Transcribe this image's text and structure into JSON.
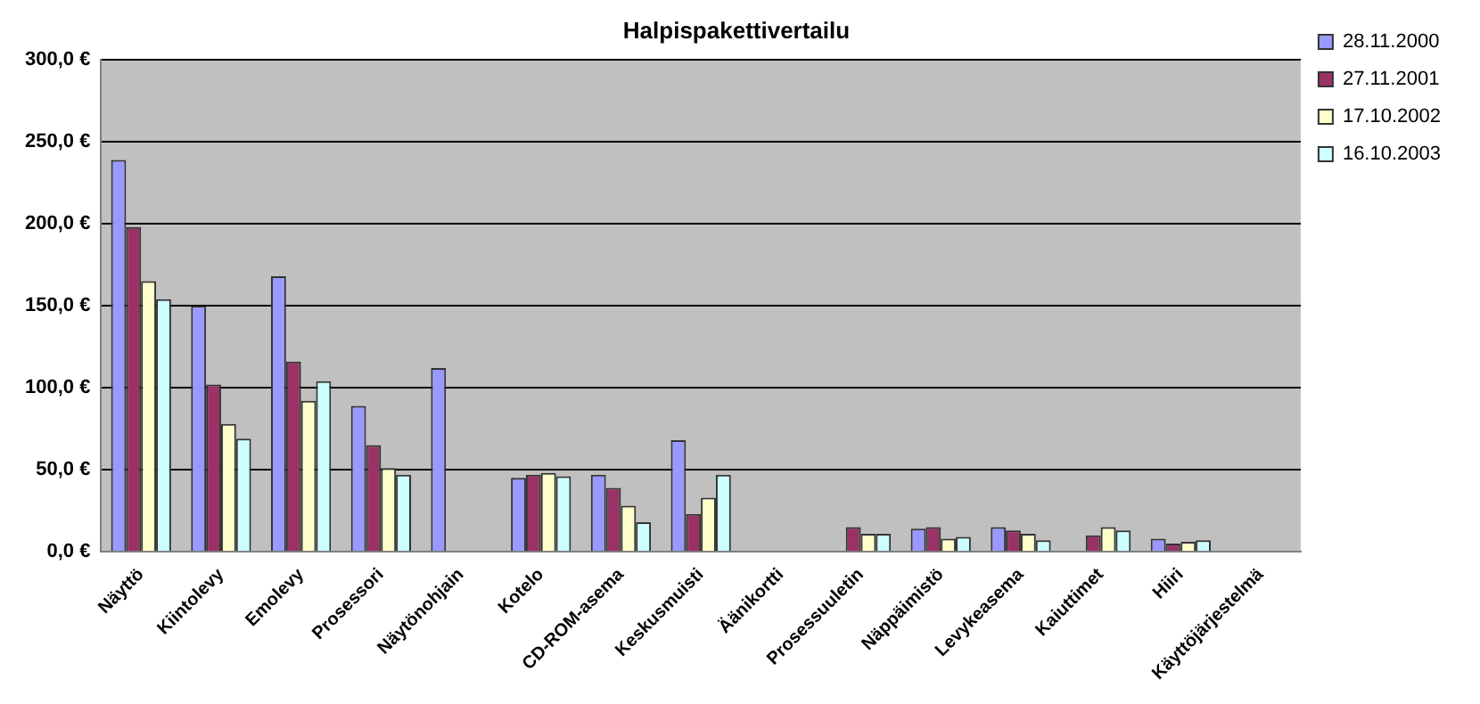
{
  "chart_data": {
    "type": "bar",
    "title": "Halpispakettivertailu",
    "categories": [
      "Näyttö",
      "Kiintolevy",
      "Emolevy",
      "Prosessori",
      "Näytönohjain",
      "Kotelo",
      "CD-ROM-asema",
      "Keskusmuisti",
      "Äänikortti",
      "Prosessuuletin",
      "Näppäimistö",
      "Levykeasema",
      "Kaiuttimet",
      "Hiiri",
      "Käyttöjärjestelmä"
    ],
    "series": [
      {
        "name": "28.11.2000",
        "color": "#9999ff",
        "values": [
          239,
          150,
          168,
          89,
          112,
          45,
          47,
          68,
          null,
          null,
          14,
          15,
          null,
          8,
          null
        ]
      },
      {
        "name": "27.11.2001",
        "color": "#993366",
        "values": [
          198,
          102,
          116,
          65,
          null,
          47,
          39,
          23,
          null,
          15,
          15,
          13,
          10,
          5,
          null
        ]
      },
      {
        "name": "17.10.2002",
        "color": "#ffffcc",
        "values": [
          165,
          78,
          92,
          51,
          null,
          48,
          28,
          33,
          null,
          11,
          8,
          11,
          15,
          6,
          null
        ]
      },
      {
        "name": "16.10.2003",
        "color": "#ccffff",
        "values": [
          154,
          69,
          104,
          47,
          null,
          46,
          18,
          47,
          null,
          11,
          9,
          7,
          13,
          7,
          null
        ]
      }
    ],
    "ylim": [
      0,
      300
    ],
    "yticks": [
      {
        "value": 0,
        "label": "0,0 €"
      },
      {
        "value": 50,
        "label": "50,0 €"
      },
      {
        "value": 100,
        "label": "100,0 €"
      },
      {
        "value": 150,
        "label": "150,0 €"
      },
      {
        "value": 200,
        "label": "200,0 €"
      },
      {
        "value": 250,
        "label": "250,0 €"
      },
      {
        "value": 300,
        "label": "300,0 €"
      }
    ],
    "grid": "y",
    "legend": "top right"
  }
}
